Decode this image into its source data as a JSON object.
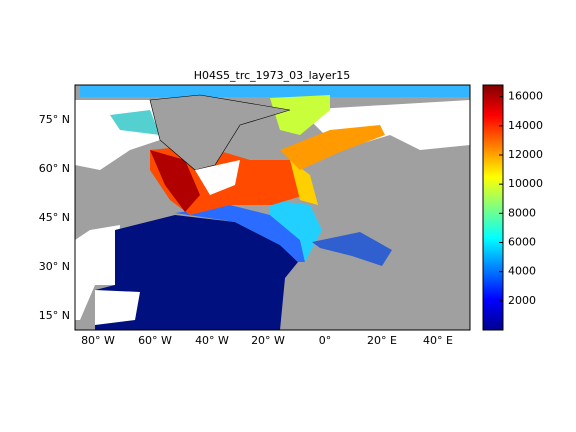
{
  "title": "H04S5_trc_1973_03_layer15",
  "lon_ticks": [
    "80° W",
    "60° W",
    "40° W",
    "20° W",
    "0°",
    "20° E",
    "40° E"
  ],
  "lat_ticks": [
    "15° N",
    "30° N",
    "45° N",
    "60° N",
    "75° N"
  ],
  "colorbar": {
    "lim": [
      0,
      16800
    ],
    "ticks": [
      2000,
      4000,
      6000,
      8000,
      10000,
      12000,
      14000,
      16000
    ]
  }
}
